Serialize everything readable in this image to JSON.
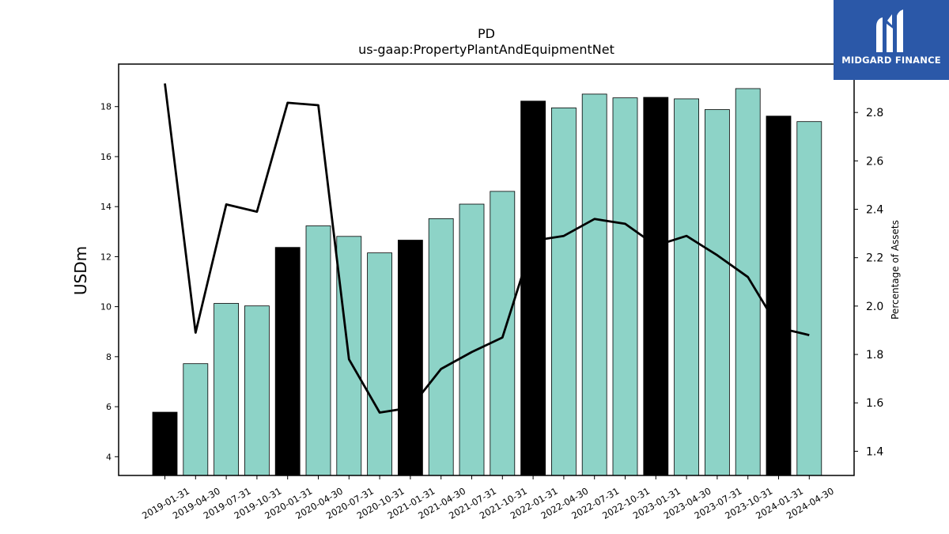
{
  "chart_data": {
    "type": "bar",
    "title": "PD",
    "subtitle": "us-gaap:PropertyPlantAndEquipmentNet",
    "ylabel": "USDm",
    "y2label": "Percentage of Assets",
    "categories": [
      "2019-01-31",
      "2019-04-30",
      "2019-07-31",
      "2019-10-31",
      "2020-01-31",
      "2020-04-30",
      "2020-07-31",
      "2020-10-31",
      "2021-01-31",
      "2021-04-30",
      "2021-07-31",
      "2021-10-31",
      "2022-01-31",
      "2022-04-30",
      "2022-07-31",
      "2022-10-31",
      "2023-01-31",
      "2023-04-30",
      "2023-07-31",
      "2023-10-31",
      "2024-01-31",
      "2024-04-30"
    ],
    "series": [
      {
        "type": "bar",
        "axis": "left",
        "values": [
          5.78,
          7.72,
          10.13,
          10.03,
          12.37,
          13.23,
          12.81,
          12.15,
          12.66,
          13.52,
          14.1,
          14.61,
          18.22,
          17.95,
          18.5,
          18.35,
          18.37,
          18.31,
          17.88,
          18.72,
          17.62,
          17.4
        ],
        "colors": [
          "#000000",
          "#8dd3c7",
          "#8dd3c7",
          "#8dd3c7",
          "#000000",
          "#8dd3c7",
          "#8dd3c7",
          "#8dd3c7",
          "#000000",
          "#8dd3c7",
          "#8dd3c7",
          "#8dd3c7",
          "#000000",
          "#8dd3c7",
          "#8dd3c7",
          "#8dd3c7",
          "#000000",
          "#8dd3c7",
          "#8dd3c7",
          "#8dd3c7",
          "#000000",
          "#8dd3c7"
        ]
      },
      {
        "type": "line",
        "axis": "right",
        "values": [
          2.92,
          1.89,
          2.42,
          2.39,
          2.84,
          2.83,
          1.78,
          1.56,
          1.58,
          1.74,
          1.81,
          1.87,
          2.27,
          2.29,
          2.36,
          2.34,
          2.25,
          2.29,
          2.21,
          2.12,
          1.91,
          1.88
        ],
        "color": "#000000"
      }
    ],
    "ylim": [
      3.25,
      19.7
    ],
    "y2lim": [
      1.3,
      3.0
    ],
    "yticks": [
      4,
      6,
      8,
      10,
      12,
      14,
      16,
      18
    ],
    "y2ticks": [
      "1.4",
      "1.6",
      "1.8",
      "2.0",
      "2.2",
      "2.4",
      "2.6",
      "2.8"
    ],
    "grid": false,
    "legend": "none"
  },
  "logo": {
    "text": "MIDGARD FINANCE",
    "bg": "#2b58a8"
  }
}
